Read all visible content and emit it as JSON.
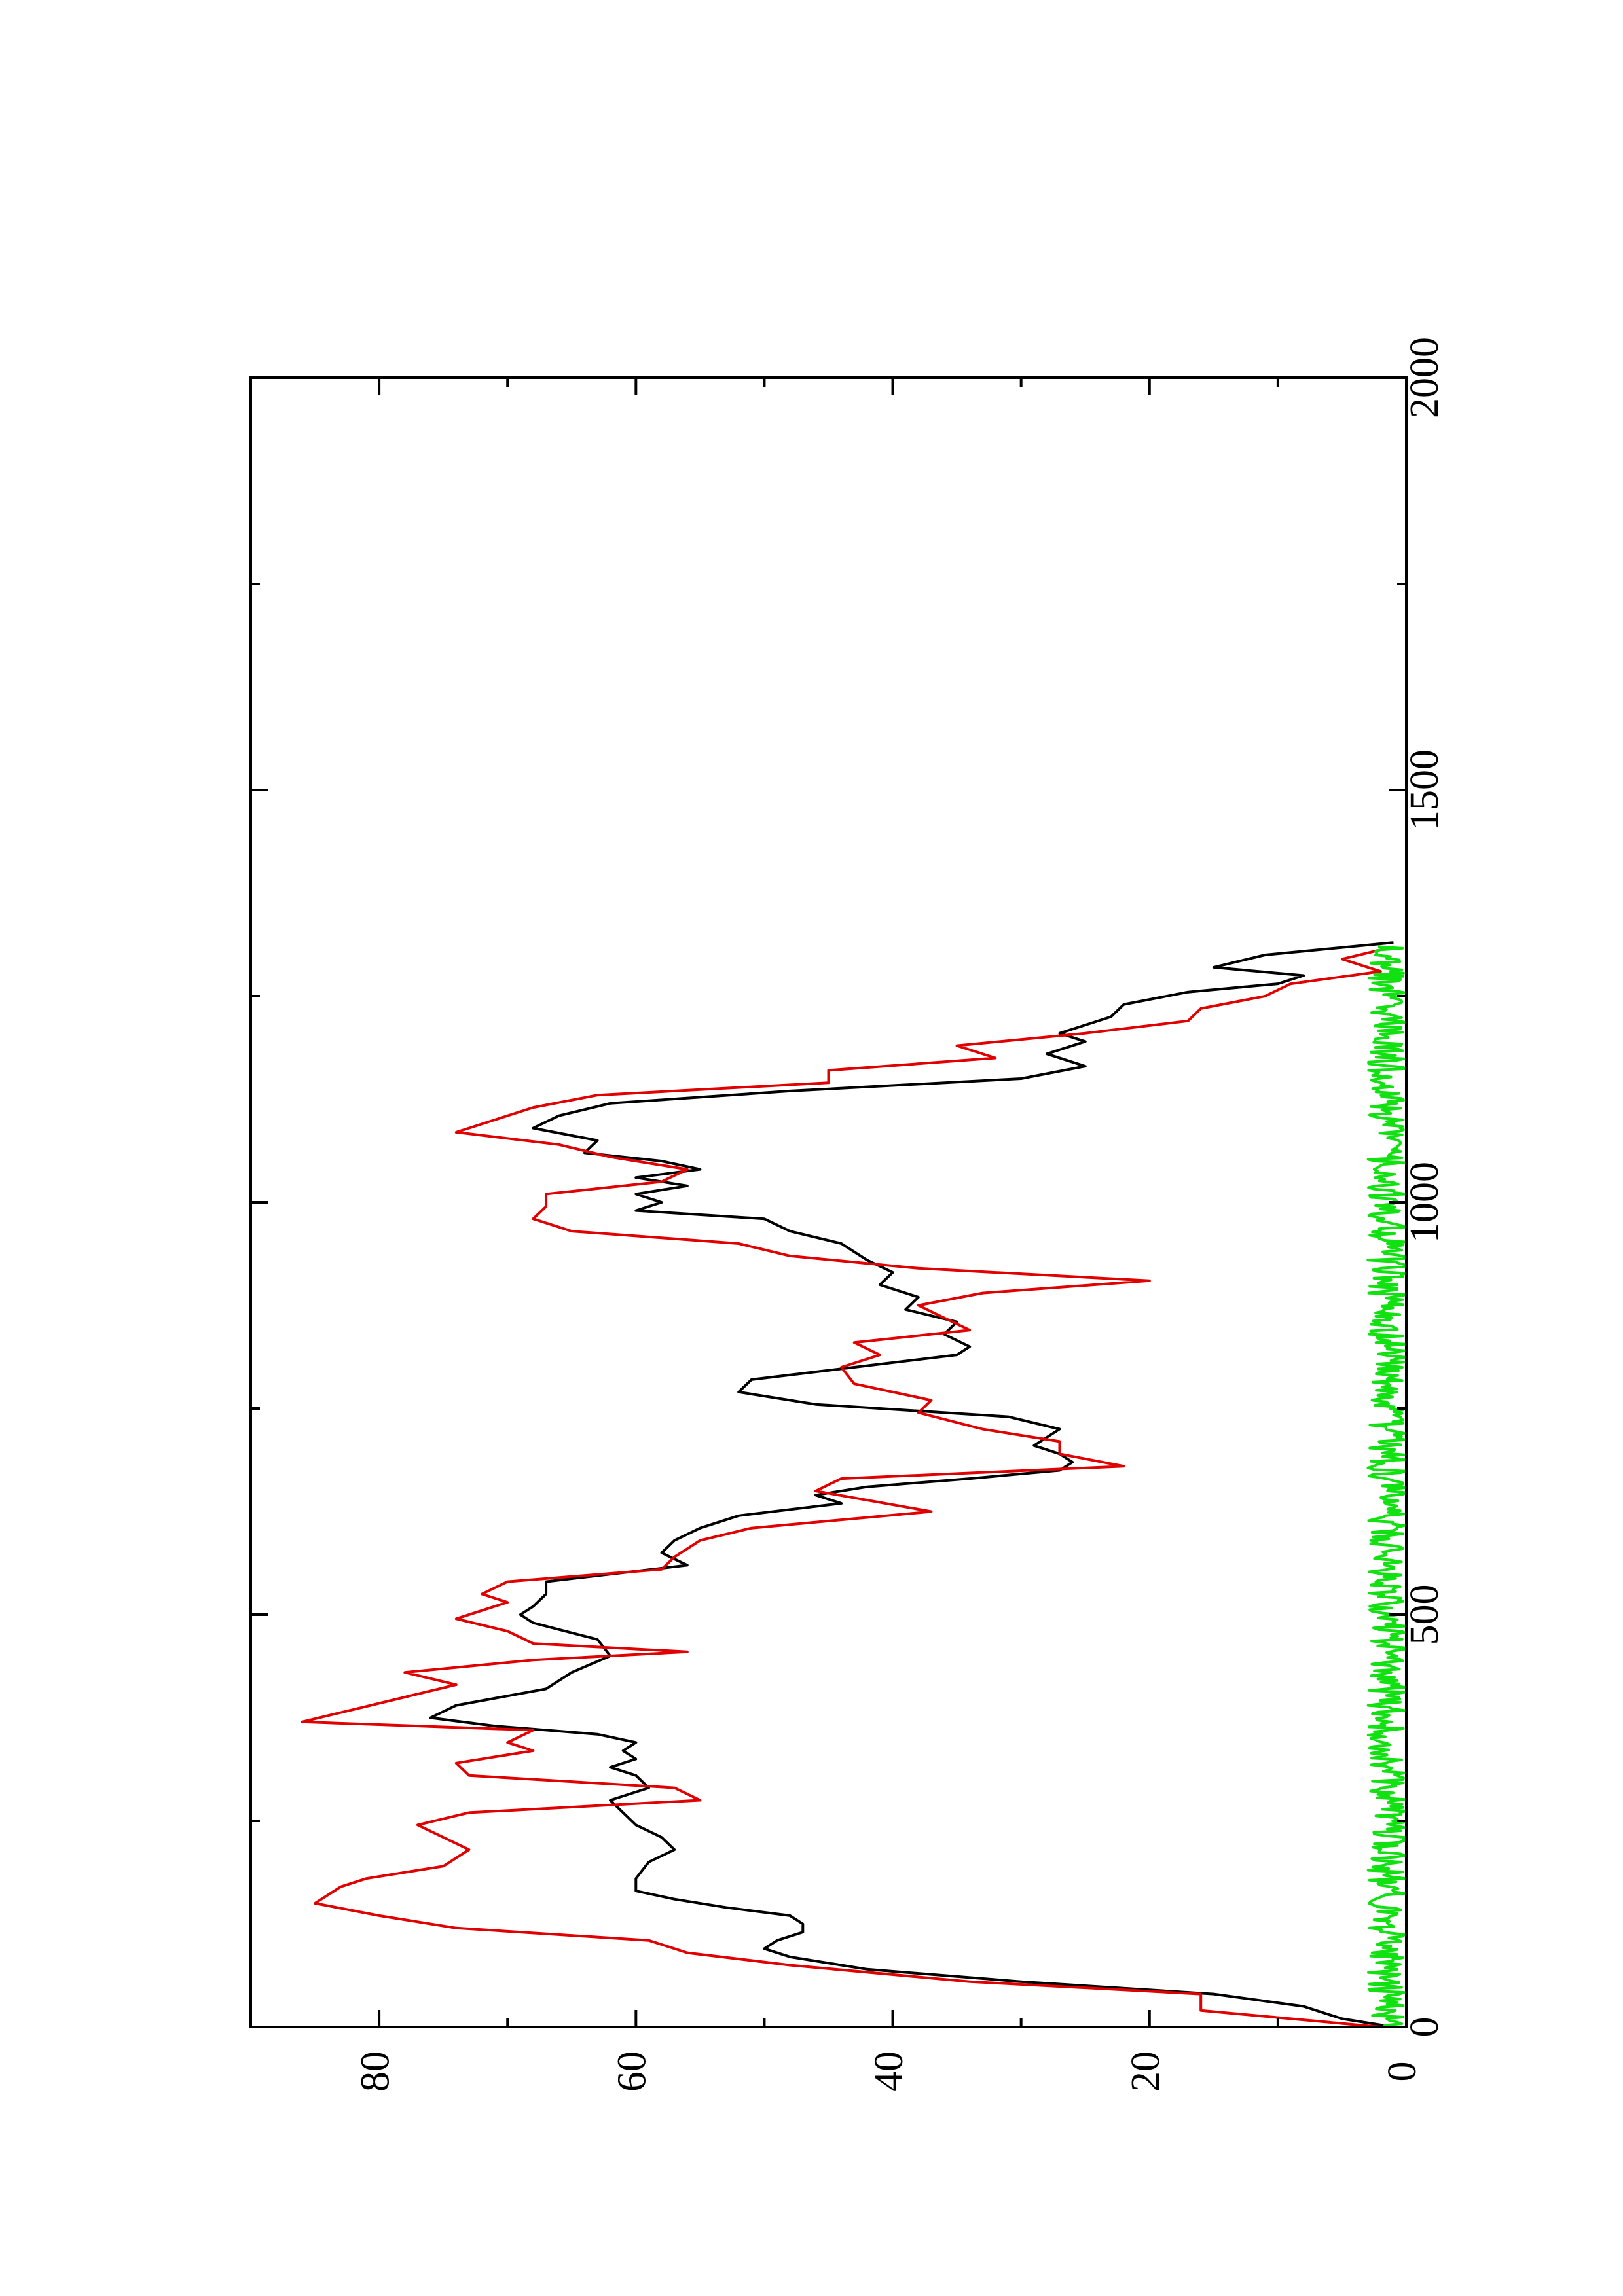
{
  "chart_data": {
    "type": "line",
    "orientation": "rotated-90-ccw",
    "title": "",
    "xlabel": "",
    "ylabel": "",
    "xlim": [
      0,
      2000
    ],
    "ylim": [
      0,
      90
    ],
    "x_ticks": [
      0,
      500,
      1000,
      1500,
      2000
    ],
    "x_minor_ticks": [
      250,
      750,
      1250,
      1750
    ],
    "y_ticks": [
      0,
      20,
      40,
      60,
      80
    ],
    "y_minor_ticks": [
      10,
      30,
      50,
      70
    ],
    "grid": false,
    "legend": "none",
    "series": [
      {
        "color": "#000000",
        "x": [
          0,
          10,
          25,
          40,
          55,
          70,
          85,
          95,
          105,
          115,
          125,
          135,
          145,
          155,
          165,
          180,
          200,
          215,
          230,
          245,
          260,
          275,
          290,
          305,
          315,
          325,
          335,
          345,
          355,
          365,
          375,
          390,
          410,
          430,
          450,
          470,
          490,
          500,
          510,
          525,
          540,
          560,
          575,
          590,
          605,
          620,
          635,
          645,
          655,
          665,
          675,
          685,
          695,
          705,
          715,
          725,
          740,
          755,
          770,
          785,
          800,
          815,
          825,
          840,
          855,
          870,
          885,
          900,
          915,
          930,
          950,
          965,
          980,
          990,
          1000,
          1010,
          1020,
          1030,
          1040,
          1050,
          1060,
          1075,
          1090,
          1105,
          1120,
          1135,
          1150,
          1165,
          1180,
          1195,
          1205,
          1215,
          1225,
          1240,
          1255,
          1265,
          1275,
          1285,
          1300,
          1315
        ],
        "values": [
          1,
          5,
          8,
          15,
          30,
          42,
          48,
          50,
          49,
          47,
          47,
          48,
          53,
          57,
          60,
          60,
          59,
          57,
          58,
          60,
          61,
          62,
          59,
          60,
          62,
          60,
          61,
          60,
          63,
          71,
          76,
          74,
          67,
          65,
          62,
          63,
          68,
          69,
          68,
          67,
          67,
          56,
          58,
          57,
          55,
          52,
          44,
          46,
          42,
          34,
          27,
          26,
          27,
          29,
          28,
          27,
          31,
          46,
          52,
          51,
          43,
          35,
          34,
          36,
          35,
          39,
          38,
          41,
          40,
          42,
          44,
          48,
          50,
          60,
          58,
          60,
          56,
          60,
          55,
          58,
          64,
          63,
          68,
          66,
          62,
          48,
          30,
          25,
          28,
          25,
          27,
          25,
          23,
          22,
          17,
          10,
          8,
          15,
          11,
          1
        ]
      },
      {
        "color": "#e00000",
        "x": [
          0,
          10,
          20,
          40,
          55,
          75,
          90,
          105,
          120,
          135,
          150,
          160,
          170,
          180,
          195,
          215,
          230,
          245,
          260,
          275,
          290,
          305,
          320,
          335,
          345,
          360,
          370,
          385,
          400,
          415,
          430,
          445,
          455,
          465,
          480,
          495,
          505,
          515,
          525,
          540,
          555,
          570,
          590,
          605,
          625,
          650,
          665,
          680,
          695,
          710,
          725,
          745,
          760,
          780,
          800,
          815,
          830,
          845,
          860,
          875,
          890,
          905,
          920,
          935,
          950,
          965,
          980,
          995,
          1010,
          1025,
          1040,
          1055,
          1070,
          1085,
          1100,
          1115,
          1130,
          1145,
          1160,
          1175,
          1190,
          1205,
          1220,
          1235,
          1250,
          1265,
          1280,
          1295,
          1310
        ],
        "values": [
          2,
          9,
          16,
          16,
          34,
          48,
          56,
          59,
          74,
          80,
          85,
          84,
          83,
          81,
          75,
          73,
          75,
          77,
          73,
          55,
          57,
          73,
          74,
          68,
          70,
          68,
          86,
          82,
          78,
          74,
          78,
          68,
          56,
          68,
          70,
          74,
          72,
          70,
          72,
          70,
          58,
          57,
          55,
          51,
          37,
          46,
          44,
          22,
          27,
          27,
          33,
          38,
          37,
          43,
          44,
          41,
          43,
          34,
          36,
          38,
          33,
          20,
          38,
          48,
          52,
          65,
          68,
          67,
          67,
          58,
          56,
          62,
          66,
          74,
          71,
          68,
          63,
          45,
          45,
          32,
          35,
          25,
          17,
          16,
          11,
          9,
          2,
          5,
          1
        ]
      },
      {
        "color": "#11e011",
        "x_range": [
          0,
          1310
        ],
        "level": 1.5,
        "amplitude": 1.5,
        "note_noise": true
      }
    ]
  }
}
